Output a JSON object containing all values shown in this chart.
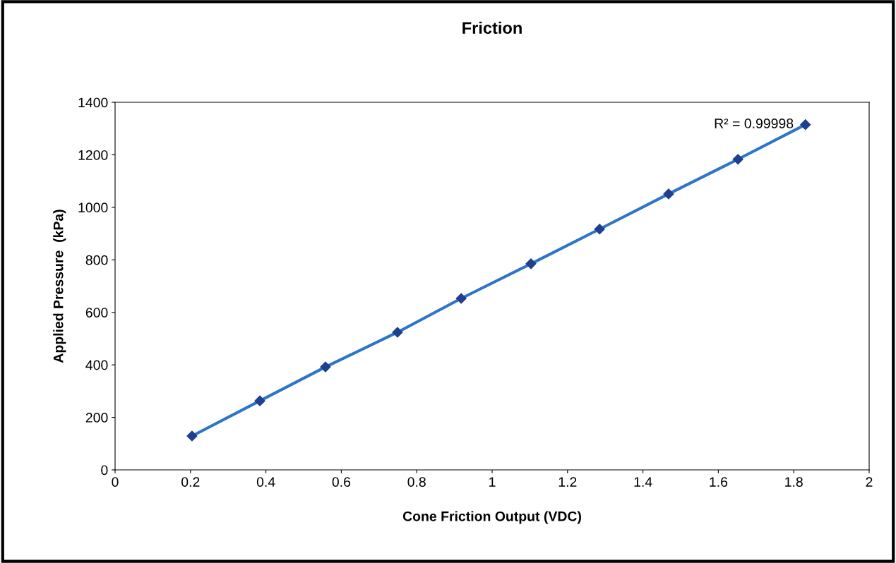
{
  "chart_data": {
    "type": "line",
    "title": "Friction",
    "xlabel": "Cone Friction Output (VDC)",
    "ylabel": "Applied Pressure  (kPa)",
    "x": [
      0.204,
      0.384,
      0.558,
      0.749,
      0.918,
      1.103,
      1.285,
      1.468,
      1.652,
      1.831
    ],
    "series": [
      {
        "color": "#2e75c8",
        "values": [
          129,
          263,
          392,
          524,
          653,
          785,
          917,
          1051,
          1183,
          1315
        ]
      }
    ],
    "marker": "diamond",
    "line_style": "solid",
    "grid": false,
    "legend": false,
    "xlim": [
      0,
      2
    ],
    "xticks": [
      0,
      0.2,
      0.4,
      0.6,
      0.8,
      1,
      1.2,
      1.4,
      1.6,
      1.8,
      2
    ],
    "ylim": [
      0,
      1400
    ],
    "yticks": [
      0,
      200,
      400,
      600,
      800,
      1000,
      1200,
      1400
    ],
    "annotations": [
      {
        "text": "R² = 0.99998",
        "x": 1.831,
        "y": 1315
      }
    ]
  }
}
